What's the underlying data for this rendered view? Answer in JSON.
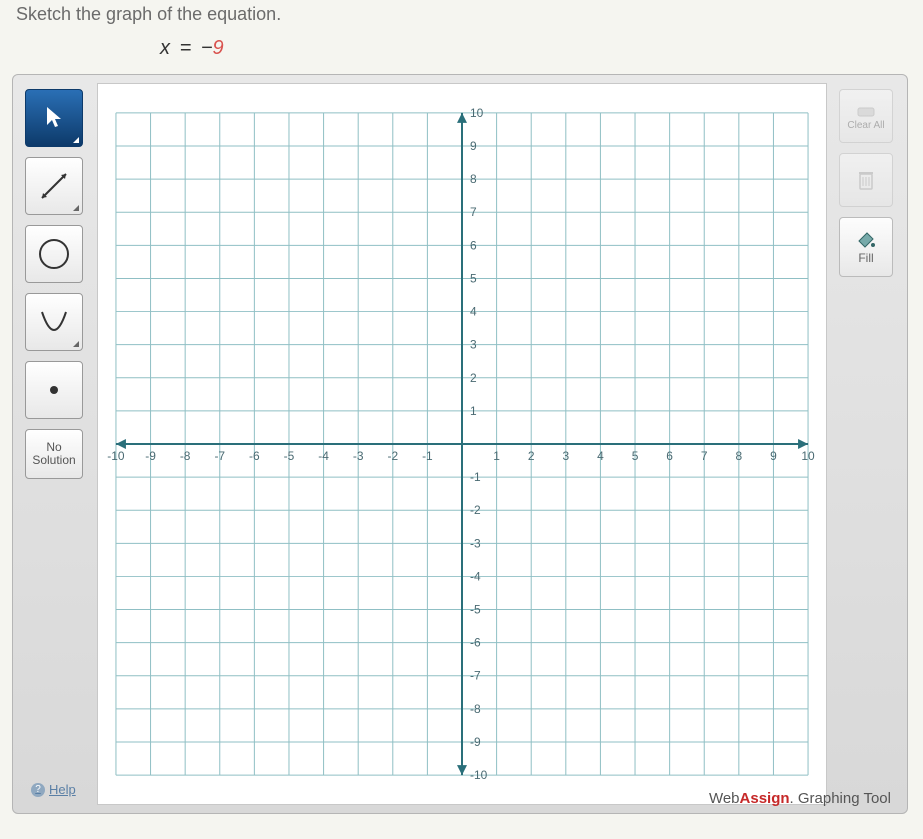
{
  "question": {
    "prompt": "Sketch the graph of the equation.",
    "equation_lhs": "x",
    "equation_eq": "=",
    "equation_neg": "−",
    "equation_value": "9"
  },
  "toolbar_left": {
    "pointer": "pointer",
    "line": "line",
    "circle": "circle",
    "parabola": "parabola",
    "point": "point",
    "no_solution_line1": "No",
    "no_solution_line2": "Solution",
    "help": "Help"
  },
  "toolbar_right": {
    "clear_label": "Clear All",
    "delete_label": "",
    "fill_label": "Fill"
  },
  "footer": {
    "brand_prefix": "Web",
    "brand_bold": "Assign",
    "brand_suffix": ". Graphing Tool"
  },
  "chart": {
    "type": "cartesian-grid",
    "xlim": [
      -10,
      10
    ],
    "ylim": [
      -10,
      10
    ],
    "xtick_step": 1,
    "ytick_step": 1,
    "x_labels": [
      "-10",
      "-9",
      "-8",
      "-7",
      "-6",
      "-5",
      "-4",
      "-3",
      "-2",
      "-1",
      "1",
      "2",
      "3",
      "4",
      "5",
      "6",
      "7",
      "8",
      "9",
      "10"
    ],
    "y_labels_pos": [
      "10",
      "9",
      "8",
      "7",
      "6",
      "5",
      "4",
      "3",
      "2",
      "1"
    ],
    "y_labels_neg": [
      "-1",
      "-2",
      "-3",
      "-4",
      "-5",
      "-6",
      "-7",
      "-8",
      "-9",
      "-10"
    ],
    "grid_color": "#8fbfc4",
    "axis_color": "#2a6f7a",
    "label_color": "#4a6a72",
    "label_fontsize": 12,
    "background_color": "#ffffff"
  }
}
